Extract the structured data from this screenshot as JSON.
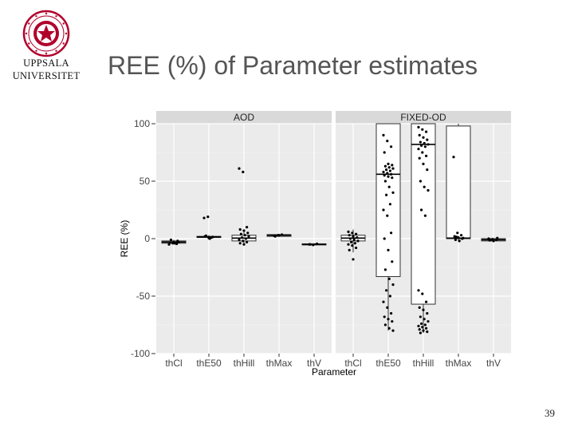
{
  "slide": {
    "logo_text": "UPPSALA UNIVERSITET",
    "university_line1": "UPPSALA",
    "university_line2": "UNIVERSITET",
    "title": "REE (%) of Parameter estimates",
    "page_number": "39"
  },
  "colors": {
    "panel_background": "#ebebeb",
    "strip_background": "#d9d9d9",
    "gridline": "#ffffff",
    "point": "#000000",
    "box_fill": "#ffffff",
    "box_stroke": "#333333",
    "logo": "#b0002b"
  },
  "chart_data": {
    "type": "box",
    "xlabel": "Parameter",
    "ylabel": "REE (%)",
    "ylim": [
      -100,
      100
    ],
    "yticks": [
      -100,
      -50,
      0,
      50,
      100
    ],
    "grid": true,
    "facets": [
      {
        "name": "AOD",
        "categories": [
          "thCl",
          "thE50",
          "thHill",
          "thMax",
          "thV"
        ],
        "boxes": [
          {
            "q1": -4,
            "median": -3,
            "q3": -2,
            "whisker_low": -5,
            "whisker_high": -1
          },
          {
            "q1": 1,
            "median": 1.5,
            "q3": 2,
            "whisker_low": 0,
            "whisker_high": 3
          },
          {
            "q1": -2,
            "median": 0.5,
            "q3": 3,
            "whisker_low": -5,
            "whisker_high": 8
          },
          {
            "q1": 2,
            "median": 3,
            "q3": 3.5,
            "whisker_low": 1.5,
            "whisker_high": 4
          },
          {
            "q1": -5.5,
            "median": -5,
            "q3": -4.5,
            "whisker_low": -6,
            "whisker_high": -4
          }
        ],
        "points": [
          [
            -5,
            -4,
            -4.5,
            -3.5,
            -3,
            -2,
            -1,
            -4,
            -3
          ],
          [
            18,
            19,
            1,
            2,
            0.5,
            1.5,
            2.5,
            0
          ],
          [
            61,
            58,
            10,
            8,
            7,
            5,
            4,
            3,
            2,
            1,
            0,
            -1,
            -2,
            -3,
            -4,
            -5
          ],
          [
            2.5,
            3,
            3.5,
            2,
            3
          ],
          [
            -5,
            -5.5,
            -4.5,
            -5
          ]
        ]
      },
      {
        "name": "FIXED-OD",
        "categories": [
          "thCl",
          "thE50",
          "thHill",
          "thMax",
          "thV"
        ],
        "boxes": [
          {
            "q1": -2,
            "median": 0.5,
            "q3": 3,
            "whisker_low": -12,
            "whisker_high": 8
          },
          {
            "q1": -33,
            "median": 56,
            "q3": 100,
            "whisker_low": -80,
            "whisker_high": 100
          },
          {
            "q1": -57,
            "median": 82,
            "q3": 100,
            "whisker_low": -82,
            "whisker_high": 100
          },
          {
            "q1": 0,
            "median": 0.5,
            "q3": 98,
            "whisker_low": -2,
            "whisker_high": 100
          },
          {
            "q1": -2,
            "median": -1,
            "q3": 0,
            "whisker_low": -2.5,
            "whisker_high": 0.5
          }
        ],
        "points": [
          [
            6,
            5,
            4,
            3,
            2,
            1,
            0,
            -1,
            -2,
            -3,
            -4,
            -5,
            -6,
            -8,
            -10,
            -18
          ],
          [
            90,
            85,
            80,
            75,
            65,
            64,
            63,
            62,
            61,
            60,
            59,
            58,
            57,
            56,
            55,
            54,
            53,
            50,
            45,
            40,
            38,
            30,
            25,
            20,
            5,
            0,
            -10,
            -20,
            -27,
            -35,
            -40,
            -45,
            -50,
            -55,
            -60,
            -65,
            -68,
            -70,
            -72,
            -75,
            -78,
            -80
          ],
          [
            97,
            95,
            93,
            90,
            88,
            86,
            84,
            83,
            82,
            81,
            80,
            78,
            75,
            72,
            70,
            65,
            60,
            50,
            45,
            42,
            25,
            20,
            -45,
            -48,
            -55,
            -60,
            -62,
            -65,
            -68,
            -70,
            -72,
            -74,
            -75,
            -76,
            -77,
            -78,
            -79,
            -80,
            -81,
            -82
          ],
          [
            71,
            5,
            3,
            2,
            1,
            0,
            -1,
            -2,
            0.5,
            1.5
          ],
          [
            0,
            -0.5,
            -1,
            -1.5,
            -2,
            0.5,
            -1
          ]
        ]
      }
    ]
  }
}
